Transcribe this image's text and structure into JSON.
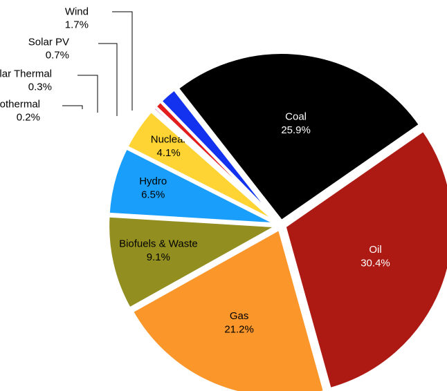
{
  "chart_data": {
    "type": "pie",
    "title": "",
    "unit": "%",
    "slices": [
      {
        "name": "Coal",
        "value_label": "25.9%",
        "value": 25.9,
        "color": "#000000",
        "label_color": "#ffffff"
      },
      {
        "name": "Oil",
        "value_label": "30.4%",
        "value": 30.4,
        "color": "#ad1a13",
        "label_color": "#ffffff"
      },
      {
        "name": "Gas",
        "value_label": "21.2%",
        "value": 21.2,
        "color": "#fb962a",
        "label_color": "#000000"
      },
      {
        "name": "Biofuels & Waste",
        "value_label": "9.1%",
        "value": 9.1,
        "color": "#938e20",
        "label_color": "#000000"
      },
      {
        "name": "Hydro",
        "value_label": "6.5%",
        "value": 6.5,
        "color": "#199ffb",
        "label_color": "#000000"
      },
      {
        "name": "Nuclear",
        "value_label": "4.1%",
        "value": 4.1,
        "color": "#fed434",
        "label_color": "#000000"
      },
      {
        "name": "Geothermal",
        "value_label": "0.2%",
        "value": 0.2,
        "color": "#1f8f22",
        "label_color": "#000000"
      },
      {
        "name": "Solar Thermal",
        "value_label": "0.3%",
        "value": 0.3,
        "color": "#e254d9",
        "label_color": "#000000"
      },
      {
        "name": "Solar PV",
        "value_label": "0.7%",
        "value": 0.7,
        "color": "#e21d1d",
        "label_color": "#000000"
      },
      {
        "name": "Wind",
        "value_label": "1.7%",
        "value": 1.7,
        "color": "#1232ef",
        "label_color": "#000000"
      }
    ]
  }
}
